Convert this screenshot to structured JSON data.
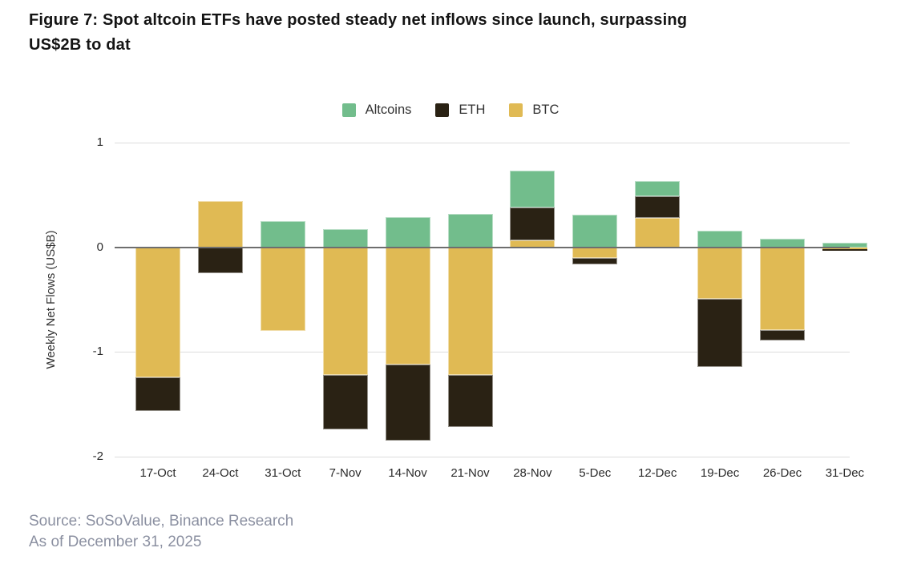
{
  "figure": {
    "title_line1": "Figure 7: Spot altcoin ETFs have posted steady net inflows since launch, surpassing",
    "title_line2": "US$2B to dat"
  },
  "source": {
    "line1": "Source: SoSoValue, Binance Research",
    "line2": "As of December 31, 2025"
  },
  "chart_data": {
    "type": "bar",
    "stacked": true,
    "title": "Figure 7: Spot altcoin ETFs have posted steady net inflows since launch, surpassing US$2B to dat",
    "xlabel": "",
    "ylabel": "Weekly Net Flows (US$B)",
    "ylim": [
      -2,
      1
    ],
    "yticks": [
      1,
      0,
      -1,
      -2
    ],
    "grid": true,
    "legend_position": "top-center",
    "legend": [
      "Altcoins",
      "ETH",
      "BTC"
    ],
    "categories": [
      "17-Oct",
      "24-Oct",
      "31-Oct",
      "7-Nov",
      "14-Nov",
      "21-Nov",
      "28-Nov",
      "5-Dec",
      "12-Dec",
      "19-Dec",
      "26-Dec",
      "31-Dec"
    ],
    "series": [
      {
        "name": "BTC",
        "color": "#e0ba54",
        "values": [
          -1.24,
          0.44,
          -0.8,
          -1.22,
          -1.12,
          -1.22,
          0.07,
          -0.1,
          0.28,
          -0.49,
          -0.79,
          -0.02
        ]
      },
      {
        "name": "ETH",
        "color": "#2a2214",
        "values": [
          -0.32,
          -0.25,
          0.0,
          -0.52,
          -0.73,
          -0.5,
          0.31,
          -0.06,
          0.21,
          -0.65,
          -0.1,
          -0.01
        ]
      },
      {
        "name": "Altcoins",
        "color": "#72bd8c",
        "values": [
          0.0,
          0.0,
          0.25,
          0.17,
          0.29,
          0.32,
          0.35,
          0.31,
          0.14,
          0.16,
          0.08,
          0.04
        ]
      }
    ],
    "colors": {
      "grid_line": "#dcdcdc",
      "zero_line": "#6e6e6e",
      "axis_text": "#2b2b2b",
      "title_text": "#141414",
      "source_text": "#8b90a1"
    }
  }
}
